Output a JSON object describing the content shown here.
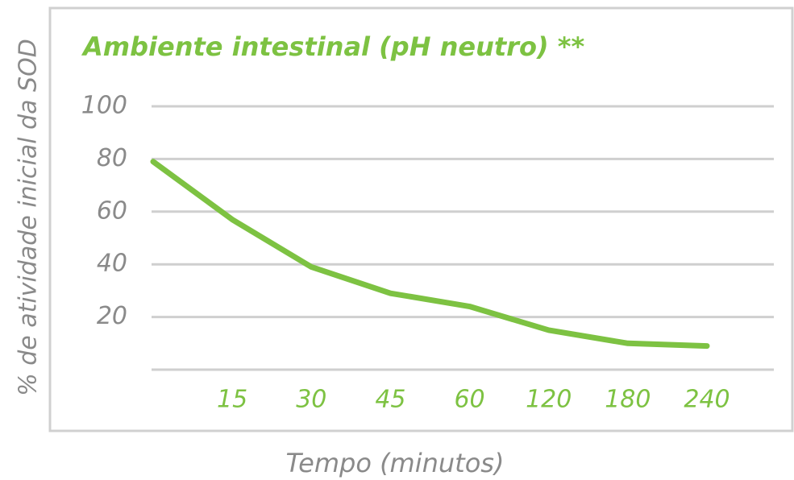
{
  "chart_data": {
    "type": "line",
    "title": "Ambiente intestinal (pH neutro) **",
    "y_label": "% de atividade inicial da SOD",
    "x_label": "Tempo (minutos)",
    "categories": [
      null,
      "15",
      "30",
      "45",
      "60",
      "120",
      "180",
      "240"
    ],
    "values": [
      79,
      57,
      39,
      29,
      24,
      15,
      10,
      9
    ],
    "color": "#7dc242",
    "ylim": [
      0,
      100
    ],
    "yticks": [
      20,
      40,
      60,
      80,
      100
    ],
    "grid": true
  }
}
